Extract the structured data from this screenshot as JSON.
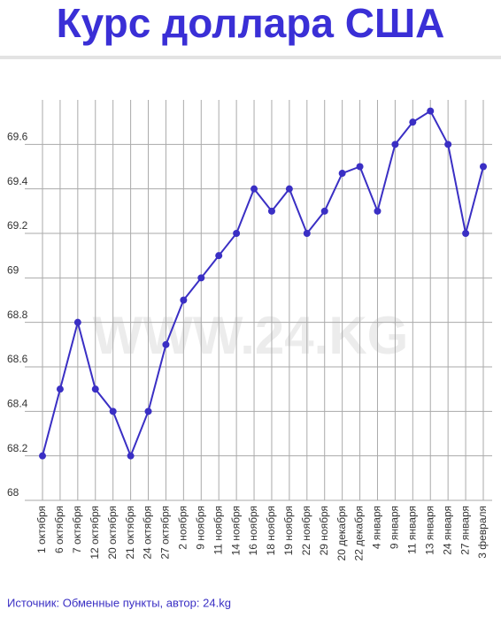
{
  "chart_data": {
    "type": "line",
    "title": "Курс доллара США",
    "watermark": "WWW.24.KG",
    "source": "Источник: Обменные пункты, автор: 24.kg",
    "categories": [
      "1 октября",
      "6 октября",
      "7 октября",
      "12 октября",
      "20 октября",
      "21 октября",
      "24 октября",
      "27 октября",
      "2 ноября",
      "9 ноября",
      "11 ноября",
      "14 ноября",
      "16 ноября",
      "18 ноября",
      "19 ноября",
      "22 ноября",
      "29 ноября",
      "20 декабря",
      "22 декабря",
      "4 января",
      "9 января",
      "11 января",
      "13 января",
      "24 января",
      "27 января",
      "3 февраля"
    ],
    "series": [
      {
        "color": "#3a2fc4",
        "values": [
          68.2,
          68.5,
          68.8,
          68.5,
          68.4,
          68.2,
          68.4,
          68.7,
          68.9,
          69.0,
          69.1,
          69.2,
          69.4,
          69.3,
          69.4,
          69.2,
          69.3,
          69.47,
          69.5,
          69.3,
          69.6,
          69.7,
          69.75,
          69.6,
          69.2,
          69.5
        ]
      }
    ],
    "ylim": [
      68,
      69.8
    ],
    "yticks": [
      68,
      68.2,
      68.4,
      68.6,
      68.8,
      69,
      69.2,
      69.4,
      69.6
    ],
    "grid": true
  }
}
